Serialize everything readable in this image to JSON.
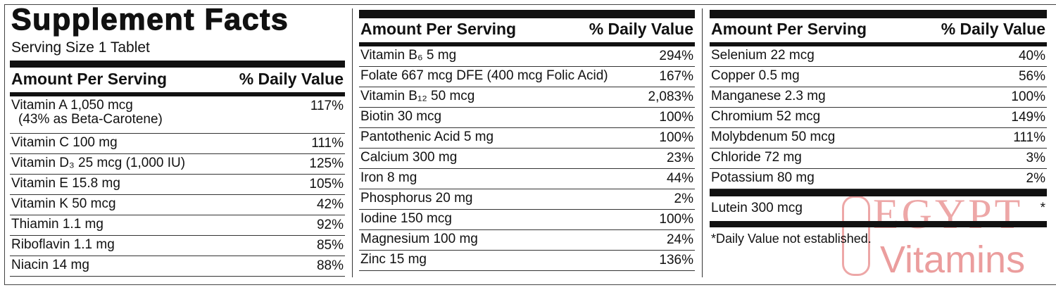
{
  "panels": [
    {
      "title": "Supplement Facts",
      "serving_size": "Serving Size 1 Tablet",
      "header": {
        "amount": "Amount Per Serving",
        "dv": "% Daily Value"
      },
      "rows": [
        {
          "name": "Vitamin A 1,050 mcg",
          "note": "(43% as Beta-Carotene)",
          "dv": "117%"
        },
        {
          "name": "Vitamin C 100 mg",
          "dv": "111%"
        },
        {
          "name": "Vitamin D₃ 25 mcg (1,000 IU)",
          "dv": "125%"
        },
        {
          "name": "Vitamin E 15.8 mg",
          "dv": "105%"
        },
        {
          "name": "Vitamin K 50 mcg",
          "dv": "42%"
        },
        {
          "name": "Thiamin 1.1 mg",
          "dv": "92%"
        },
        {
          "name": "Riboflavin 1.1 mg",
          "dv": "85%"
        },
        {
          "name": "Niacin 14 mg",
          "dv": "88%"
        }
      ]
    },
    {
      "header": {
        "amount": "Amount Per Serving",
        "dv": "% Daily Value"
      },
      "rows": [
        {
          "name": "Vitamin B₆ 5 mg",
          "dv": "294%"
        },
        {
          "name": "Folate 667 mcg DFE (400 mcg Folic Acid)",
          "dv": "167%"
        },
        {
          "name": "Vitamin B₁₂ 50 mcg",
          "dv": "2,083%"
        },
        {
          "name": "Biotin 30 mcg",
          "dv": "100%"
        },
        {
          "name": "Pantothenic Acid 5 mg",
          "dv": "100%"
        },
        {
          "name": "Calcium 300 mg",
          "dv": "23%"
        },
        {
          "name": "Iron 8 mg",
          "dv": "44%"
        },
        {
          "name": "Phosphorus 20 mg",
          "dv": "2%"
        },
        {
          "name": "Iodine 150 mcg",
          "dv": "100%"
        },
        {
          "name": "Magnesium 100 mg",
          "dv": "24%"
        },
        {
          "name": "Zinc 15 mg",
          "dv": "136%"
        }
      ]
    },
    {
      "header": {
        "amount": "Amount Per Serving",
        "dv": "% Daily Value"
      },
      "rows": [
        {
          "name": "Selenium 22 mcg",
          "dv": "40%"
        },
        {
          "name": "Copper 0.5 mg",
          "dv": "56%"
        },
        {
          "name": "Manganese 2.3 mg",
          "dv": "100%"
        },
        {
          "name": "Chromium 52 mcg",
          "dv": "149%"
        },
        {
          "name": "Molybdenum 50 mcg",
          "dv": "111%"
        },
        {
          "name": "Chloride 72 mg",
          "dv": "3%"
        },
        {
          "name": "Potassium 80 mg",
          "dv": "2%"
        }
      ],
      "extra": {
        "name": "Lutein 300 mcg",
        "dv": "*"
      },
      "footnote": "*Daily Value not established."
    }
  ],
  "watermark": {
    "line1": "EGYPT",
    "line2": "Vitamins"
  }
}
